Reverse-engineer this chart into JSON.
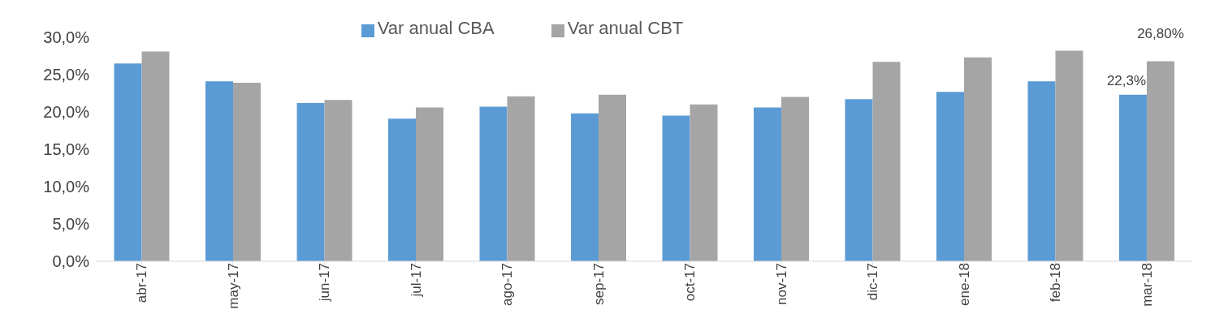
{
  "chart_data": {
    "type": "bar",
    "categories": [
      "abr-17",
      "may-17",
      "jun-17",
      "jul-17",
      "ago-17",
      "sep-17",
      "oct-17",
      "nov-17",
      "dic-17",
      "ene-18",
      "feb-18",
      "mar-18"
    ],
    "series": [
      {
        "name": "Var anual CBA",
        "color": "#5b9bd5",
        "values": [
          26.5,
          24.1,
          21.2,
          19.1,
          20.7,
          19.8,
          19.5,
          20.6,
          21.7,
          22.7,
          24.1,
          22.3
        ],
        "value_labels": [
          null,
          null,
          null,
          null,
          null,
          null,
          null,
          null,
          null,
          null,
          null,
          "22,3%"
        ]
      },
      {
        "name": "Var anual CBT",
        "color": "#a5a5a5",
        "values": [
          28.1,
          23.9,
          21.6,
          20.6,
          22.1,
          22.3,
          21.0,
          22.0,
          26.7,
          27.3,
          28.2,
          26.8
        ],
        "value_labels": [
          null,
          null,
          null,
          null,
          null,
          null,
          null,
          null,
          null,
          null,
          null,
          "26,80%"
        ]
      }
    ],
    "ylim": [
      0,
      30
    ],
    "yticks": [
      {
        "value": 0,
        "label": "0,0%"
      },
      {
        "value": 5,
        "label": "5,0%"
      },
      {
        "value": 10,
        "label": "10,0%"
      },
      {
        "value": 15,
        "label": "15,0%"
      },
      {
        "value": 20,
        "label": "20,0%"
      },
      {
        "value": 25,
        "label": "25,0%"
      },
      {
        "value": 30,
        "label": "30,0%"
      }
    ],
    "grid": false,
    "legend": "top"
  }
}
